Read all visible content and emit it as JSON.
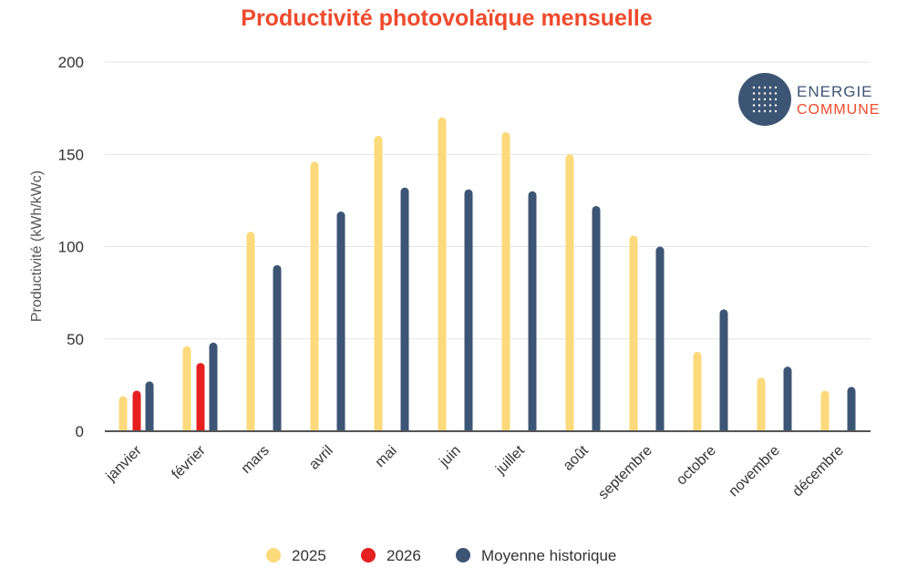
{
  "chart_data": {
    "type": "bar",
    "title": "Productivité photovolaïque mensuelle",
    "xlabel": "",
    "ylabel": "Productivité (kWh/kWc)",
    "ylim": [
      0,
      200
    ],
    "yticks": [
      0,
      50,
      100,
      150,
      200
    ],
    "grid": true,
    "legend_placement": "bottom",
    "categories": [
      "janvier",
      "février",
      "mars",
      "avril",
      "mai",
      "juin",
      "juillet",
      "août",
      "septembre",
      "octobre",
      "novembre",
      "décembre"
    ],
    "series": [
      {
        "name": "2025",
        "color": "#fcd97a",
        "values": [
          19,
          46,
          108,
          146,
          160,
          170,
          162,
          150,
          106,
          43,
          29,
          22
        ]
      },
      {
        "name": "2026",
        "color": "#e5201f",
        "values": [
          22,
          37,
          null,
          null,
          null,
          null,
          null,
          null,
          null,
          null,
          null,
          null
        ]
      },
      {
        "name": "Moyenne historique",
        "color": "#3d5574",
        "values": [
          27,
          48,
          90,
          119,
          132,
          131,
          130,
          122,
          100,
          66,
          35,
          24
        ]
      }
    ]
  },
  "logo": {
    "line1": "ENERGIE",
    "line2": "COMMUNE",
    "color1": "#3d5574",
    "color2": "#ef4a2c"
  }
}
